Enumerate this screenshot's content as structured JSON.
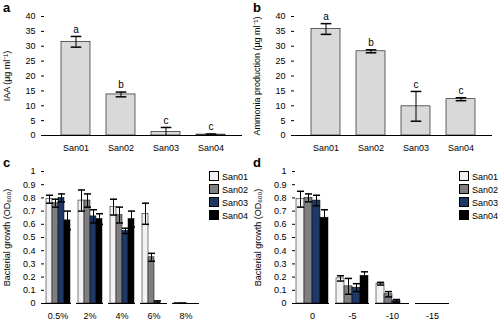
{
  "chart_data": [
    {
      "type": "bar",
      "title": "a",
      "y_label": "IAA (µg ml⁻¹)",
      "categories": [
        "San01",
        "San02",
        "San03",
        "San04"
      ],
      "values": [
        31.5,
        13.8,
        1.2,
        0.3
      ],
      "errors": [
        1.8,
        0.8,
        1.5,
        0.2
      ],
      "letters": [
        "a",
        "b",
        "c",
        "c"
      ],
      "color": "#d9d9d9",
      "ylim": [
        0,
        40
      ],
      "yticks": [
        0,
        5,
        10,
        15,
        20,
        25,
        30,
        35,
        40
      ],
      "grid": false
    },
    {
      "type": "bar",
      "title": "b",
      "y_label": "Ammonia production (µg ml⁻¹)",
      "categories": [
        "San01",
        "San02",
        "San03",
        "San04"
      ],
      "values": [
        35.8,
        28.3,
        9.8,
        12.2
      ],
      "errors": [
        1.8,
        0.5,
        5.0,
        0.5
      ],
      "letters": [
        "a",
        "b",
        "c",
        "c"
      ],
      "color": "#d9d9d9",
      "ylim": [
        0,
        40
      ],
      "yticks": [
        0,
        5,
        10,
        15,
        20,
        25,
        30,
        35,
        40
      ],
      "grid": false
    },
    {
      "type": "grouped_bar",
      "title": "c",
      "y_label": "Bacterial growth (OD₆₀₀)",
      "categories": [
        "0.5%",
        "2%",
        "4%",
        "6%",
        "8%"
      ],
      "series": [
        {
          "name": "San01",
          "color": "#f2f2f2",
          "values": [
            0.79,
            0.78,
            0.73,
            0.68,
            0.005
          ],
          "errors": [
            0.03,
            0.08,
            0.06,
            0.08,
            0
          ]
        },
        {
          "name": "San02",
          "color": "#7f7f7f",
          "values": [
            0.76,
            0.78,
            0.67,
            0.35,
            0.005
          ],
          "errors": [
            0.03,
            0.05,
            0.06,
            0.03,
            0
          ]
        },
        {
          "name": "San03",
          "color": "#1f3864",
          "values": [
            0.8,
            0.66,
            0.55,
            0.01,
            0
          ],
          "errors": [
            0.03,
            0.05,
            0.02,
            0.01,
            0
          ]
        },
        {
          "name": "San04",
          "color": "#000000",
          "values": [
            0.63,
            0.64,
            0.64,
            0,
            0
          ],
          "errors": [
            0.07,
            0.04,
            0.06,
            0,
            0
          ]
        }
      ],
      "ylim": [
        0,
        1
      ],
      "yticks": [
        0,
        0.1,
        0.2,
        0.3,
        0.4,
        0.5,
        0.6,
        0.7,
        0.8,
        0.9,
        1
      ],
      "legend": "top-right",
      "grid": false
    },
    {
      "type": "grouped_bar",
      "title": "d",
      "y_label": "Bacterial growth (OD₆₀₀)",
      "categories": [
        "0",
        "-5",
        "-10",
        "-15"
      ],
      "series": [
        {
          "name": "San01",
          "color": "#f2f2f2",
          "values": [
            0.79,
            0.19,
            0.15,
            0
          ],
          "errors": [
            0.06,
            0.02,
            0.01,
            0
          ]
        },
        {
          "name": "San02",
          "color": "#7f7f7f",
          "values": [
            0.8,
            0.13,
            0.07,
            0
          ],
          "errors": [
            0.03,
            0.06,
            0.02,
            0
          ]
        },
        {
          "name": "San03",
          "color": "#1f3864",
          "values": [
            0.78,
            0.12,
            0.02,
            0
          ],
          "errors": [
            0.04,
            0.03,
            0.01,
            0
          ]
        },
        {
          "name": "San04",
          "color": "#000000",
          "values": [
            0.65,
            0.21,
            0,
            0
          ],
          "errors": [
            0.06,
            0.03,
            0,
            0
          ]
        }
      ],
      "ylim": [
        0,
        1
      ],
      "yticks": [
        0,
        0.1,
        0.2,
        0.3,
        0.4,
        0.5,
        0.6,
        0.7,
        0.8,
        0.9,
        1
      ],
      "legend": "top-right",
      "grid": false
    }
  ]
}
